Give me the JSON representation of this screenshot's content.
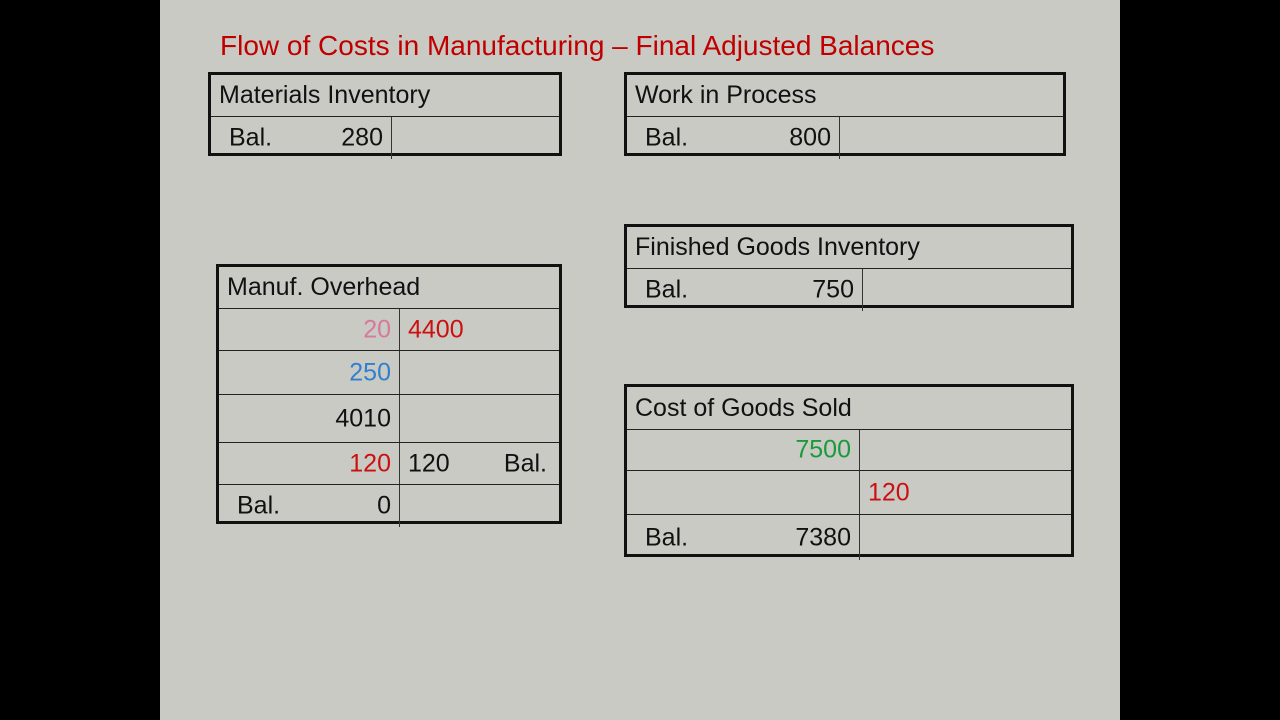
{
  "title": "Flow of Costs in Manufacturing – Final Adjusted Balances",
  "colors": {
    "title": "#c00000",
    "pink": "#d9789a",
    "red": "#cc1010",
    "blue": "#2f80d0",
    "green": "#1a9a3a",
    "black": "#111111"
  },
  "accounts": [
    {
      "id": "materials-inventory",
      "name": "Materials Inventory",
      "rows": [
        {
          "left_label": "Bal.",
          "left_value": "280"
        }
      ]
    },
    {
      "id": "work-in-process",
      "name": "Work in Process",
      "rows": [
        {
          "left_label": "Bal.",
          "left_value": "800"
        }
      ]
    },
    {
      "id": "finished-goods-inventory",
      "name": "Finished Goods Inventory",
      "rows": [
        {
          "left_label": "Bal.",
          "left_value": "750"
        }
      ]
    },
    {
      "id": "manuf-overhead",
      "name": "Manuf. Overhead",
      "rows": [
        {
          "left_value": "20",
          "left_color": "pink",
          "right_value": "4400",
          "right_color": "red"
        },
        {
          "left_value": "250",
          "left_color": "blue"
        },
        {
          "left_value": "4010"
        },
        {
          "left_value": "120",
          "left_color": "red",
          "right_value": "120",
          "right_label": "Bal."
        },
        {
          "left_label": "Bal.",
          "left_value": "0"
        }
      ]
    },
    {
      "id": "cost-of-goods-sold",
      "name": "Cost of Goods Sold",
      "rows": [
        {
          "left_value": "7500",
          "left_color": "green"
        },
        {
          "right_value": "120",
          "right_color": "red"
        },
        {
          "left_label": "Bal.",
          "left_value": "7380"
        }
      ]
    }
  ]
}
